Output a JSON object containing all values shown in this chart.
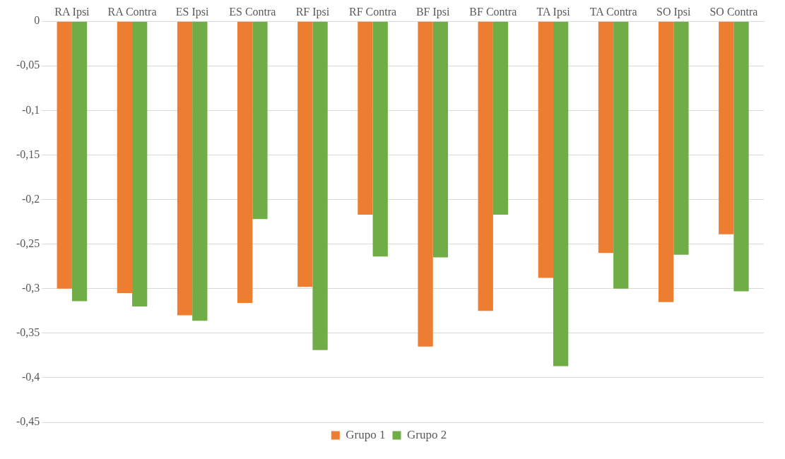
{
  "chart_data": {
    "type": "bar",
    "categories": [
      "RA Ipsi",
      "RA Contra",
      "ES Ipsi",
      "ES Contra",
      "RF Ipsi",
      "RF Contra",
      "BF Ipsi",
      "BF Contra",
      "TA Ipsi",
      "TA Contra",
      "SO Ipsi",
      "SO Contra"
    ],
    "series": [
      {
        "name": "Grupo 1",
        "color": "#ed7d31",
        "values": [
          -0.3,
          -0.305,
          -0.33,
          -0.316,
          -0.298,
          -0.217,
          -0.365,
          -0.325,
          -0.288,
          -0.26,
          -0.315,
          -0.239
        ]
      },
      {
        "name": "Grupo 2",
        "color": "#70ad47",
        "values": [
          -0.314,
          -0.32,
          -0.336,
          -0.222,
          -0.369,
          -0.264,
          -0.265,
          -0.217,
          -0.387,
          -0.3,
          -0.262,
          -0.303
        ]
      }
    ],
    "ylim": [
      -0.45,
      0
    ],
    "yticks": [
      {
        "value": 0,
        "label": "0"
      },
      {
        "value": -0.05,
        "label": "-0,05"
      },
      {
        "value": -0.1,
        "label": "-0,1"
      },
      {
        "value": -0.15,
        "label": "-0,15"
      },
      {
        "value": -0.2,
        "label": "-0,2"
      },
      {
        "value": -0.25,
        "label": "-0,25"
      },
      {
        "value": -0.3,
        "label": "-0,3"
      },
      {
        "value": -0.35,
        "label": "-0,35"
      },
      {
        "value": -0.4,
        "label": "-0,4"
      },
      {
        "value": -0.45,
        "label": "-0,45"
      }
    ],
    "grid": "y",
    "legend": "bottom"
  }
}
